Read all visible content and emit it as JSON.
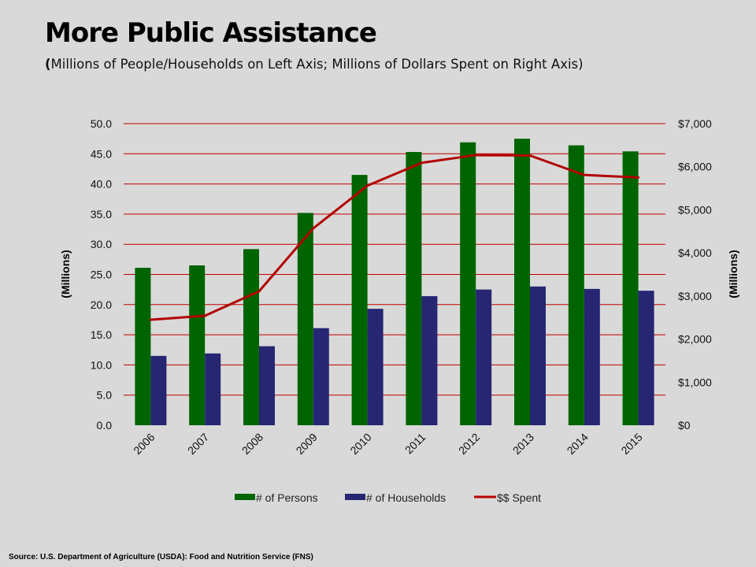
{
  "slide": {
    "title": "More Public Assistance",
    "subtitle_open": "(",
    "subtitle_body": "Millions of People/Households  on Left Axis; Millions of Dollars Spent on Right Axis)",
    "source": "Source: U.S. Department of Agriculture (USDA): Food and Nutrition Service (FNS)"
  },
  "colors": {
    "persons": "#006400",
    "households": "#262673",
    "spent": "#b30000",
    "gridline": "#c00000",
    "background": "#d9d9d9"
  },
  "chart_data": {
    "type": "bar",
    "title": "More Public Assistance",
    "categories": [
      "2006",
      "2007",
      "2008",
      "2009",
      "2010",
      "2011",
      "2012",
      "2013",
      "2014",
      "2015"
    ],
    "series": [
      {
        "name": "# of Persons",
        "type": "bar",
        "axis": "left",
        "values": [
          26.1,
          26.5,
          29.2,
          35.2,
          41.5,
          45.3,
          46.9,
          47.5,
          46.4,
          45.4
        ]
      },
      {
        "name": "# of Households",
        "type": "bar",
        "axis": "left",
        "values": [
          11.5,
          11.9,
          13.1,
          16.1,
          19.3,
          21.4,
          22.5,
          23.0,
          22.6,
          22.3
        ]
      },
      {
        "name": "$$ Spent",
        "type": "line",
        "axis": "right",
        "values": [
          2450,
          2540,
          3110,
          4570,
          5560,
          6090,
          6270,
          6260,
          5810,
          5750
        ]
      }
    ],
    "left_axis": {
      "label": "(Millions)",
      "ylim": [
        0,
        50
      ],
      "ticks": [
        "0.0",
        "5.0",
        "10.0",
        "15.0",
        "20.0",
        "25.0",
        "30.0",
        "35.0",
        "40.0",
        "45.0",
        "50.0"
      ]
    },
    "right_axis": {
      "label": "(Millions)",
      "ylim": [
        0,
        7000
      ],
      "ticks": [
        "$0",
        "$1,000",
        "$2,000",
        "$3,000",
        "$4,000",
        "$5,000",
        "$6,000",
        "$7,000"
      ]
    },
    "xlabel": "",
    "grid": true,
    "legend": {
      "position": "bottom",
      "entries": [
        "# of Persons",
        "# of Households",
        "$$ Spent"
      ]
    }
  }
}
